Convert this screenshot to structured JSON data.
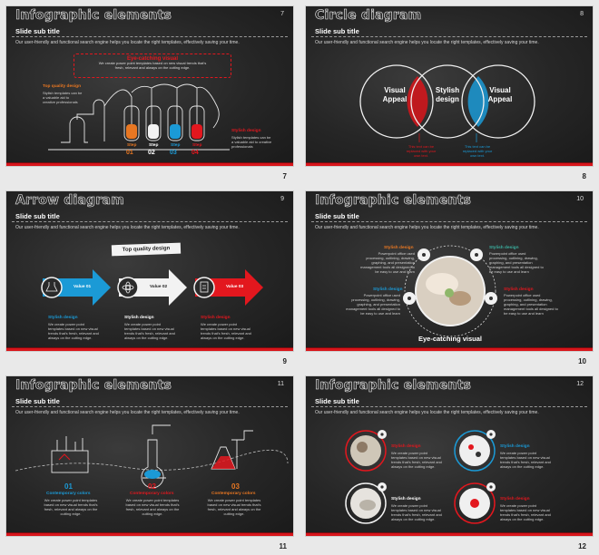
{
  "common": {
    "subtitle": "Slide sub title",
    "description": "Our user-friendly and functional search engine helps you locate the right templates, effectively saving your time."
  },
  "slides": [
    {
      "title": "Infographic elements",
      "num": "7",
      "page": "7",
      "eye_title": "Eye-catching visual",
      "eye_text": "We create power point templates based on new visual trends that's fresh, relevant and always on the cutting edge.",
      "top_quality": "Top quality design",
      "top_quality_text": "Stylish templates can be a valuable aid to creative professionals",
      "stylish": "Stylish design",
      "stylish_text": "Stylish templates can be a valuable aid to creative professionals",
      "steps": [
        {
          "label": "Step",
          "num": "01",
          "color": "#e87722"
        },
        {
          "label": "Step",
          "num": "02",
          "color": "#ffffff"
        },
        {
          "label": "Step",
          "num": "03",
          "color": "#1b9ad6"
        },
        {
          "label": "Step",
          "num": "04",
          "color": "#d8151b"
        }
      ]
    },
    {
      "title": "Circle diagram",
      "num": "8",
      "page": "8",
      "left": "Visual Appeal",
      "center": "Stylish design",
      "right": "Visual Appeal",
      "red_note": "This text can be replaced with your own text.",
      "blue_note": "This text can be replaced with your own text."
    },
    {
      "title": "Arrow diagram",
      "num": "9",
      "page": "9",
      "banner": "Top quality design",
      "arrows": [
        {
          "label": "Value 01",
          "color": "#1b9ad6",
          "text_color": "#ffffff"
        },
        {
          "label": "Value 02",
          "color": "#ffffff",
          "text_color": "#222222"
        },
        {
          "label": "Value 03",
          "color": "#e3171e",
          "text_color": "#ffffff"
        }
      ],
      "items": [
        {
          "head": "Stylish design",
          "color": "#1b9ad6",
          "text": "We create power point templates based on new visual trends that's fresh, relevant and always on the cutting edge."
        },
        {
          "head": "Stylish design",
          "color": "#ffffff",
          "text": "We create power point templates based on new visual trends that's fresh, relevant and always on the cutting edge."
        },
        {
          "head": "Stylish design",
          "color": "#e3171e",
          "text": "We create power point templates based on new visual trends that's fresh, relevant and always on the cutting edge."
        }
      ]
    },
    {
      "title": "Infographic elements",
      "num": "10",
      "page": "10",
      "center_label": "Eye-catching visual",
      "blocks": [
        {
          "head": "Stylish design",
          "color": "#e87722",
          "text": "Powerpoint office used processing, outlining, drawing, graphing, and presentation management tools all designed to be easy to use and learn"
        },
        {
          "head": "Stylish design",
          "color": "#3ab0a0",
          "text": "Powerpoint office used processing, outlining, drawing, graphing, and presentation management tools all designed to be easy to use and learn"
        },
        {
          "head": "Stylish design",
          "color": "#1b9ad6",
          "text": "Powerpoint office used processing, outlining, drawing, graphing, and presentation management tools all designed to be easy to use and learn"
        },
        {
          "head": "Stylish design",
          "color": "#e3171e",
          "text": "Powerpoint office used processing, outlining, drawing, graphing, and presentation management tools all designed to be easy to use and learn"
        }
      ]
    },
    {
      "title": "Infographic elements",
      "num": "11",
      "page": "11",
      "cols": [
        {
          "num": "01",
          "head": "Contemporary colors",
          "color": "#1b9ad6",
          "text": "We create power point templates based on new visual trends that's fresh, relevant and always on the cutting edge."
        },
        {
          "num": "02",
          "head": "Contemporary colors",
          "color": "#e3171e",
          "text": "We create power point templates based on new visual trends that's fresh, relevant and always on the cutting edge."
        },
        {
          "num": "03",
          "head": "Contemporary colors",
          "color": "#e87722",
          "text": "We create power point templates based on new visual trends that's fresh, relevant and always on the cutting edge."
        }
      ]
    },
    {
      "title": "Infographic elements",
      "num": "12",
      "page": "12",
      "items": [
        {
          "head": "Stylish design",
          "color": "#e3171e",
          "text": "We create power point templates based on new visual trends that's fresh, relevant and always on the cutting edge."
        },
        {
          "head": "Stylish design",
          "color": "#1b9ad6",
          "text": "We create power point templates based on new visual trends that's fresh, relevant and always on the cutting edge."
        },
        {
          "head": "Stylish design",
          "color": "#ffffff",
          "text": "We create power point templates based on new visual trends that's fresh, relevant and always on the cutting edge."
        },
        {
          "head": "Stylish design",
          "color": "#e3171e",
          "text": "We create power point templates based on new visual trends that's fresh, relevant and always on the cutting edge."
        }
      ]
    }
  ]
}
